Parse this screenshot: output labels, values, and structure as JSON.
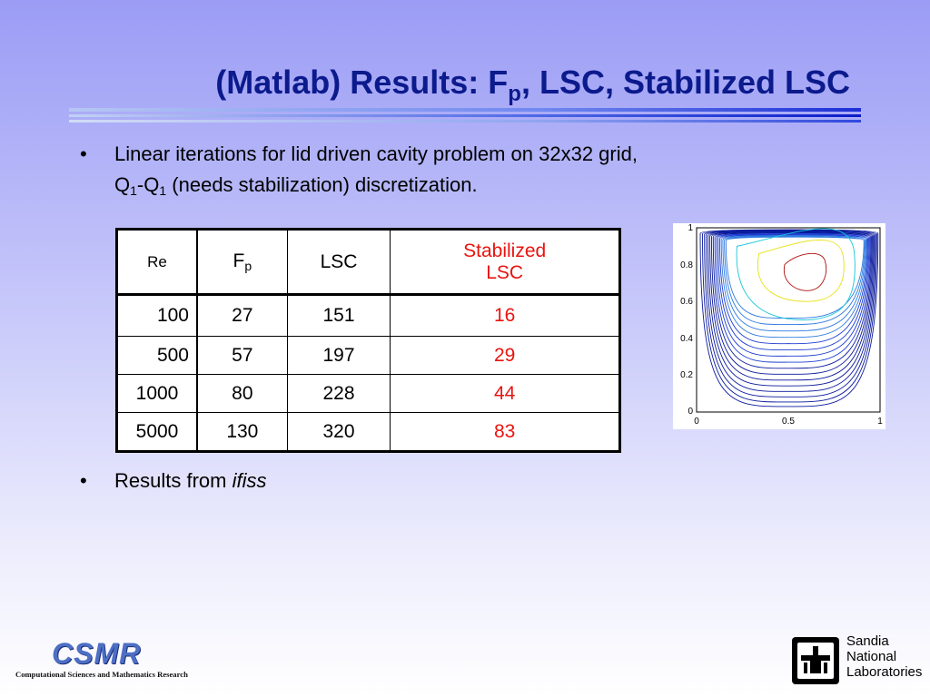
{
  "slide": {
    "title_main": "(Matlab) Results: F",
    "title_sub": "p",
    "title_rest": ", LSC, Stabilized LSC"
  },
  "bullets": [
    {
      "line1": "Linear iterations for lid driven cavity problem on 32x32 grid,",
      "q1": "Q",
      "q1_sub": "1",
      "dash": "-Q",
      "q2_sub": "1",
      "line2_rest": " (needs stabilization) discretization."
    },
    {
      "text": "Results from ",
      "italic": "ifiss"
    }
  ],
  "table": {
    "headers": {
      "re": "Re",
      "fp_main": "F",
      "fp_sub": "p",
      "lsc": "LSC",
      "stab_line1": "Stabilized",
      "stab_line2": "LSC"
    },
    "rows": [
      {
        "re": "100",
        "fp": "27",
        "lsc": "151",
        "stab": "16"
      },
      {
        "re": "500",
        "fp": "57",
        "lsc": "197",
        "stab": "29"
      },
      {
        "re": "1000",
        "fp": "80",
        "lsc": "228",
        "stab": "44"
      },
      {
        "re": "5000",
        "fp": "130",
        "lsc": "320",
        "stab": "83"
      }
    ],
    "highlight_color": "#e8140f"
  },
  "plot": {
    "y_ticks": [
      "0",
      "0.2",
      "0.4",
      "0.6",
      "0.8",
      "1"
    ],
    "x_ticks": [
      "0",
      "0.5",
      "1"
    ]
  },
  "logos": {
    "csmr_word": "CSMR",
    "csmr_subtitle": "Computational Sciences and Mathematics Research",
    "sandia_line1": "Sandia",
    "sandia_line2": "National",
    "sandia_line3": "Laboratories"
  },
  "colors": {
    "title": "#0b1a8c",
    "accent_red": "#e8140f"
  }
}
